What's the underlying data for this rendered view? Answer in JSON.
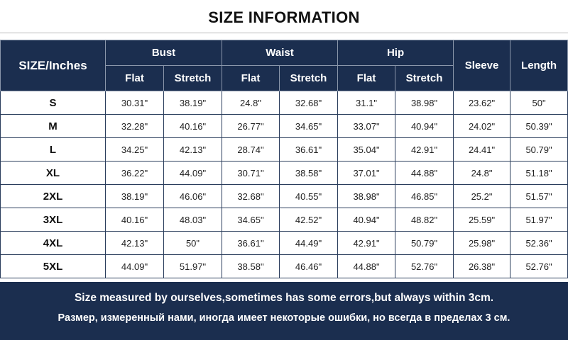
{
  "title": "SIZE INFORMATION",
  "colors": {
    "header_bg": "#1b2e4f",
    "header_text": "#ffffff",
    "border": "#2a3d5c"
  },
  "table": {
    "size_header": "SIZE/Inches",
    "groups": [
      "Bust",
      "Waist",
      "Hip"
    ],
    "sub_headers": [
      "Flat",
      "Stretch",
      "Flat",
      "Stretch",
      "Flat",
      "Stretch"
    ],
    "sleeve_header": "Sleeve",
    "length_header": "Length",
    "rows": [
      {
        "size": "S",
        "values": [
          "30.31\"",
          "38.19\"",
          "24.8\"",
          "32.68\"",
          "31.1\"",
          "38.98\"",
          "23.62\"",
          "50\""
        ]
      },
      {
        "size": "M",
        "values": [
          "32.28\"",
          "40.16\"",
          "26.77\"",
          "34.65\"",
          "33.07\"",
          "40.94\"",
          "24.02\"",
          "50.39\""
        ]
      },
      {
        "size": "L",
        "values": [
          "34.25\"",
          "42.13\"",
          "28.74\"",
          "36.61\"",
          "35.04\"",
          "42.91\"",
          "24.41\"",
          "50.79\""
        ]
      },
      {
        "size": "XL",
        "values": [
          "36.22\"",
          "44.09\"",
          "30.71\"",
          "38.58\"",
          "37.01\"",
          "44.88\"",
          "24.8\"",
          "51.18\""
        ]
      },
      {
        "size": "2XL",
        "values": [
          "38.19\"",
          "46.06\"",
          "32.68\"",
          "40.55\"",
          "38.98\"",
          "46.85\"",
          "25.2\"",
          "51.57\""
        ]
      },
      {
        "size": "3XL",
        "values": [
          "40.16\"",
          "48.03\"",
          "34.65\"",
          "42.52\"",
          "40.94\"",
          "48.82\"",
          "25.59\"",
          "51.97\""
        ]
      },
      {
        "size": "4XL",
        "values": [
          "42.13\"",
          "50\"",
          "36.61\"",
          "44.49\"",
          "42.91\"",
          "50.79\"",
          "25.98\"",
          "52.36\""
        ]
      },
      {
        "size": "5XL",
        "values": [
          "44.09\"",
          "51.97\"",
          "38.58\"",
          "46.46\"",
          "44.88\"",
          "52.76\"",
          "26.38\"",
          "52.76\""
        ]
      }
    ]
  },
  "footer": {
    "line1": "Size measured by ourselves,sometimes has some errors,but always within 3cm.",
    "line2": "Размер, измеренный нами, иногда имеет некоторые ошибки, но всегда в пределах 3 см."
  }
}
